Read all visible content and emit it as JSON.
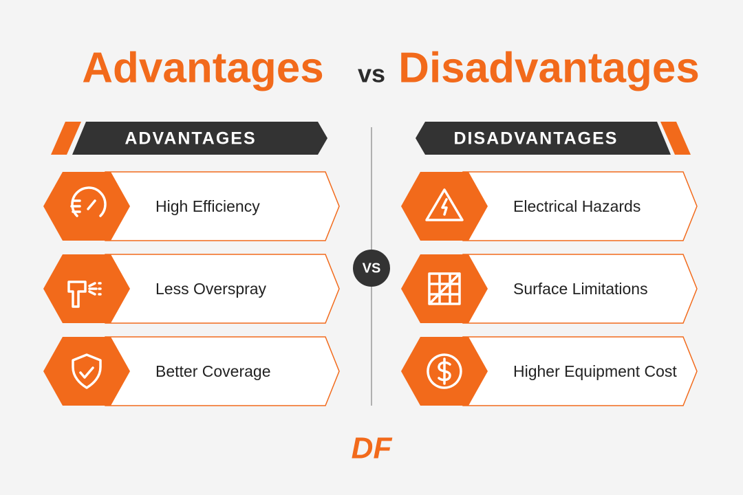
{
  "title": {
    "left": "Advantages",
    "middle": "vs",
    "right": "Disadvantages"
  },
  "advantages": {
    "heading": "ADVANTAGES",
    "items": [
      "High Efficiency",
      "Less Overspray",
      "Better Coverage"
    ]
  },
  "disadvantages": {
    "heading": "DISADVANTAGES",
    "items": [
      "Electrical Hazards",
      "Surface Limitations",
      "Higher Equipment Cost"
    ]
  },
  "divider": "VS",
  "logo": "DF"
}
